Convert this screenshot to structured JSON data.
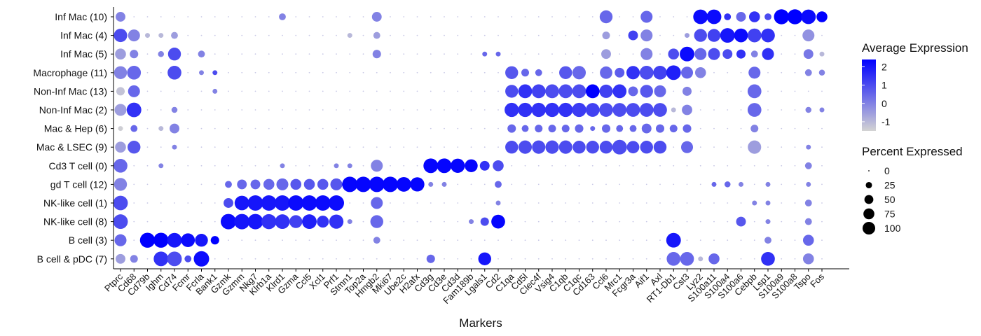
{
  "chart_data": {
    "type": "dotplot",
    "xlabel": "Markers",
    "ylabel": "",
    "genes": [
      "Ptprc",
      "Cd68",
      "Cd79b",
      "Ighm",
      "Cd74",
      "Fcmr",
      "Fcrla",
      "Bank1",
      "Gzmk",
      "Gzmm",
      "Nkg7",
      "Klrb1a",
      "Klrd1",
      "Gzma",
      "Ccl5",
      "Xcl1",
      "Prf1",
      "Stmn1",
      "Top2a",
      "Hmgb2",
      "Mki67",
      "Ube2c",
      "H2afx",
      "Cd3g",
      "Cd3e",
      "Cd3d",
      "Fam189b",
      "Lgals1",
      "Cd2",
      "C1qa",
      "Cd5l",
      "Clec4f",
      "Vsig4",
      "C1qb",
      "C1qc",
      "Cd163",
      "Ccl6",
      "Mrc1",
      "Fcgr3a",
      "Aif1",
      "Axl",
      "RT1-Db1",
      "Cst3",
      "Lyz2",
      "S100a11",
      "S100a4",
      "S100a6",
      "Cebpb",
      "Lsp1",
      "S100a9",
      "S100a8",
      "Tspo",
      "Fos"
    ],
    "clusters": [
      "Inf Mac (10)",
      "Inf Mac (4)",
      "Inf Mac (5)",
      "Macrophage (11)",
      "Non-Inf Mac (13)",
      "Non-Inf Mac (2)",
      "Mac & Hep (6)",
      "Mac & LSEC (9)",
      "Cd3 T cell (0)",
      "gd T cell (12)",
      "NK-like cell (1)",
      "NK-like cell (8)",
      "B cell (3)",
      "B cell & pDC (7)"
    ],
    "avg_expression": [
      [
        0,
        -1,
        -1,
        -1,
        -1,
        -1,
        -1,
        -1,
        -1,
        -1,
        -1,
        -1,
        0,
        -1,
        -1,
        -1,
        -1,
        -1,
        -1,
        0,
        -1,
        -1,
        -1,
        -1,
        -1,
        -1,
        -1,
        -1,
        -1,
        -1,
        -1,
        -1,
        -1,
        -1,
        -1,
        -1,
        0.5,
        -1,
        -1,
        0.5,
        -1,
        -1,
        -1,
        2.2,
        2.2,
        1.5,
        0.5,
        1.5,
        1,
        2.4,
        2.4,
        2.2,
        2.4
      ],
      [
        1,
        0,
        -1,
        -1,
        -0.5,
        -1,
        -1,
        -1,
        -1,
        -1,
        -1,
        -1,
        -1,
        -1,
        -1,
        -1,
        -1,
        -1,
        -1,
        -0.5,
        -1,
        -1,
        -1,
        -1,
        -1,
        -1,
        -1,
        -1,
        -1,
        -1,
        -1,
        -1,
        -1,
        -1,
        -1,
        -1,
        -0.5,
        -1,
        1.2,
        0,
        -1,
        -1,
        -0.5,
        1,
        1.2,
        2,
        2.2,
        1.2,
        1.5,
        -1,
        -1,
        -0.3,
        -1
      ],
      [
        -0.5,
        0,
        -1,
        0,
        1,
        -1,
        0,
        -1,
        -1,
        -1,
        -1,
        -1,
        -1,
        -1,
        -1,
        -1,
        -1,
        -1,
        -1,
        0,
        -1,
        -1,
        -1,
        -1,
        -1,
        -1,
        -1,
        0.5,
        0.5,
        -1,
        -1,
        -1,
        -1,
        -1,
        -1,
        -1,
        -0.5,
        -1,
        -1,
        0,
        -1,
        1,
        2.2,
        0.5,
        1,
        1,
        1.5,
        0,
        1.5,
        -1,
        -1,
        0.2,
        -1
      ],
      [
        0,
        0.5,
        -1,
        -1,
        1,
        -1,
        0,
        1,
        -1,
        -1,
        -1,
        -1,
        -1,
        -1,
        -1,
        -1,
        -1,
        -1,
        -1,
        -1,
        -1,
        -1,
        -1,
        -1,
        -1,
        -1,
        -1,
        -1,
        -1,
        0.8,
        0.5,
        0.5,
        -1,
        0.8,
        0.5,
        -1,
        0.5,
        0.7,
        1.5,
        1,
        1.2,
        1.8,
        0.5,
        0,
        -1,
        -1,
        -1,
        0.5,
        -1,
        -1,
        -1,
        0,
        0
      ],
      [
        -1.2,
        0.5,
        -1,
        -1,
        -1,
        -1,
        -1,
        0,
        -1,
        -1,
        -1,
        -1,
        -1,
        -1,
        -1,
        -1,
        -1,
        -1,
        -1,
        -1,
        -1,
        -1,
        -1,
        -1,
        -1,
        -1,
        -1,
        -1,
        -1,
        1,
        1.5,
        1.2,
        1,
        1,
        1,
        2.4,
        1.2,
        1.5,
        0.5,
        0.8,
        0.5,
        -1,
        0,
        -1,
        -1,
        -1,
        -1,
        0.5,
        -1,
        -1,
        -1,
        -1,
        -1
      ],
      [
        -0.5,
        1.5,
        -1,
        -1,
        0,
        -1,
        -1,
        -1,
        -1,
        -1,
        -1,
        -1,
        -1,
        -1,
        -1,
        -1,
        -1,
        -1,
        -1,
        -1,
        -1,
        -1,
        -1,
        -1,
        -1,
        -1,
        -1,
        -1,
        -1,
        1.5,
        1.5,
        1.5,
        1.5,
        1.5,
        1.3,
        1.2,
        1,
        1,
        1,
        1,
        1,
        -1,
        0,
        -1,
        -1,
        -1,
        -1,
        0.5,
        -1,
        -1,
        -1,
        0,
        0
      ],
      [
        -1.4,
        0.5,
        -1,
        -1,
        0,
        -1,
        -1,
        -1,
        -1,
        -1,
        -1,
        -1,
        -1,
        -1,
        -1,
        -1,
        -1,
        -1,
        -1,
        -1,
        -1,
        -1,
        -1,
        -1,
        -1,
        -1,
        -1,
        -1,
        -1,
        0.5,
        0.5,
        0.5,
        0.5,
        0.5,
        0.5,
        0.5,
        0.5,
        0.5,
        0.5,
        0.5,
        0.5,
        0.5,
        0.5,
        -1,
        -1,
        -1,
        -1,
        0,
        -1,
        -1,
        -1,
        -1,
        -1
      ],
      [
        -0.5,
        0.8,
        -1,
        -1,
        0,
        -1,
        -1,
        -1,
        -1,
        -1,
        -1,
        -1,
        -1,
        -1,
        -1,
        -1,
        -1,
        -1,
        -1,
        -1,
        -1,
        -1,
        -1,
        -1,
        -1,
        -1,
        -1,
        -1,
        -1,
        1,
        1,
        1,
        1,
        1,
        1,
        1,
        1,
        1,
        1,
        1,
        1,
        -1,
        0.5,
        -1,
        -1,
        -1,
        -1,
        -0.5,
        -1,
        -1,
        -1,
        0,
        -1
      ],
      [
        0.5,
        -1,
        -1,
        0,
        -1,
        -1,
        -1,
        -1,
        -1,
        -1,
        -1,
        -1,
        0,
        -1,
        -1,
        -1,
        0,
        0,
        -1,
        0,
        -1,
        -1,
        -1,
        2.3,
        2.3,
        2.3,
        2.3,
        1.5,
        1,
        -1,
        -1,
        -1,
        -1,
        -1,
        -1,
        -1,
        -1,
        -1,
        -1,
        -1,
        -1,
        -1,
        -1,
        -1,
        -1,
        -1,
        -1,
        -1,
        -1,
        -1,
        -1,
        0,
        -1
      ],
      [
        0,
        -1,
        -1,
        -1,
        -1,
        -1,
        -1,
        -1,
        0.5,
        0.5,
        0.5,
        0.5,
        0.5,
        0.8,
        0.8,
        0.8,
        0.8,
        2.3,
        2.3,
        2.3,
        2.3,
        2.3,
        2.3,
        0,
        0,
        -1,
        -1,
        -1,
        0.5,
        -1,
        -1,
        -1,
        -1,
        -1,
        -1,
        -1,
        -1,
        -1,
        -1,
        -1,
        -1,
        -1,
        -1,
        -1,
        0.5,
        0.5,
        0,
        -1,
        0,
        -1,
        -1,
        0,
        -1
      ],
      [
        1,
        -1,
        -1,
        -1,
        -1,
        -1,
        -1,
        -1,
        1,
        2,
        2,
        2,
        2,
        2.2,
        2.2,
        2.2,
        2.2,
        -1,
        -1,
        0.5,
        -1,
        -1,
        -1,
        -1,
        -1,
        -1,
        -1,
        -1,
        0,
        -1,
        -1,
        -1,
        -1,
        -1,
        -1,
        -1,
        -1,
        -1,
        -1,
        -1,
        -1,
        -1,
        -1,
        -1,
        -1,
        -1,
        -1,
        0,
        0,
        -1,
        -1,
        0,
        -1
      ],
      [
        1,
        -1,
        -1,
        -1,
        -1,
        -1,
        -1,
        -1,
        2.2,
        2,
        2,
        1.5,
        1.5,
        1.2,
        1.8,
        1.5,
        1.5,
        0,
        -1,
        0.5,
        -1,
        -1,
        -1,
        -1,
        -1,
        -1,
        0,
        1,
        2.3,
        -1,
        -1,
        -1,
        -1,
        -1,
        -1,
        -1,
        -1,
        -1,
        -1,
        -1,
        -1,
        -1,
        -1,
        -1,
        -1,
        -1,
        0.8,
        -1,
        0,
        -1,
        -1,
        0,
        -1
      ],
      [
        0.5,
        -1,
        2.4,
        2.4,
        2,
        2.2,
        2,
        2.4,
        -1,
        -1,
        -1,
        -1,
        -1,
        -1,
        -1,
        -1,
        -1,
        -1,
        -1,
        0,
        -1,
        -1,
        -1,
        -1,
        -1,
        -1,
        -1,
        -1,
        -1,
        -1,
        -1,
        -1,
        -1,
        -1,
        -1,
        -1,
        -1,
        -1,
        -1,
        -1,
        -1,
        2,
        -1,
        -1,
        -1,
        -1,
        -1,
        -1,
        0,
        -1,
        -1,
        0.5,
        -1
      ],
      [
        -0.5,
        0,
        -1,
        1.5,
        1,
        1,
        2.2,
        -1,
        -1,
        -1,
        -1,
        -1,
        -1,
        -1,
        -1,
        -1,
        -1,
        -1,
        -1,
        -1,
        -1,
        -1,
        -1,
        0.5,
        -1,
        -1,
        -1,
        2,
        -1,
        -1,
        -1,
        -1,
        -1,
        -1,
        -1,
        -1,
        -1,
        -1,
        -1,
        -1,
        -1,
        0.5,
        0.5,
        -1,
        0.5,
        -1,
        -1,
        -1,
        1.5,
        -1,
        -1,
        0,
        -1
      ]
    ],
    "pct_expressed": [
      [
        40,
        5,
        5,
        5,
        5,
        5,
        5,
        5,
        5,
        5,
        5,
        5,
        20,
        5,
        5,
        5,
        5,
        5,
        5,
        40,
        5,
        5,
        5,
        5,
        5,
        5,
        5,
        5,
        5,
        5,
        5,
        5,
        5,
        5,
        5,
        5,
        70,
        5,
        5,
        60,
        5,
        5,
        5,
        90,
        90,
        20,
        40,
        50,
        20,
        95,
        95,
        90,
        50
      ],
      [
        75,
        60,
        10,
        10,
        20,
        5,
        5,
        5,
        5,
        5,
        5,
        5,
        5,
        5,
        5,
        5,
        5,
        10,
        5,
        20,
        5,
        5,
        5,
        5,
        5,
        5,
        5,
        5,
        5,
        5,
        5,
        5,
        5,
        5,
        5,
        5,
        25,
        5,
        40,
        60,
        5,
        5,
        10,
        70,
        70,
        90,
        80,
        80,
        80,
        5,
        5,
        60,
        5
      ],
      [
        50,
        30,
        5,
        15,
        70,
        5,
        20,
        5,
        5,
        5,
        5,
        5,
        5,
        5,
        5,
        5,
        5,
        5,
        5,
        30,
        5,
        5,
        5,
        5,
        5,
        5,
        5,
        10,
        10,
        5,
        5,
        5,
        5,
        5,
        5,
        5,
        40,
        5,
        5,
        60,
        5,
        50,
        90,
        60,
        60,
        40,
        35,
        20,
        60,
        5,
        5,
        40,
        10
      ],
      [
        70,
        80,
        5,
        5,
        80,
        5,
        10,
        10,
        5,
        5,
        5,
        5,
        5,
        5,
        5,
        5,
        5,
        5,
        5,
        5,
        5,
        5,
        5,
        5,
        5,
        5,
        5,
        5,
        5,
        70,
        25,
        20,
        5,
        70,
        75,
        5,
        65,
        40,
        75,
        80,
        80,
        90,
        60,
        50,
        5,
        5,
        5,
        60,
        5,
        5,
        5,
        20,
        15
      ],
      [
        30,
        60,
        5,
        5,
        5,
        5,
        5,
        10,
        5,
        5,
        5,
        5,
        5,
        5,
        5,
        5,
        5,
        5,
        5,
        5,
        5,
        5,
        5,
        5,
        5,
        5,
        5,
        5,
        5,
        70,
        80,
        80,
        80,
        80,
        80,
        80,
        75,
        80,
        40,
        70,
        60,
        5,
        35,
        5,
        5,
        5,
        5,
        80,
        5,
        5,
        5,
        5,
        5
      ],
      [
        60,
        90,
        5,
        5,
        15,
        5,
        5,
        5,
        5,
        5,
        5,
        5,
        5,
        5,
        5,
        5,
        5,
        5,
        5,
        5,
        5,
        5,
        5,
        5,
        5,
        5,
        5,
        5,
        5,
        85,
        85,
        85,
        85,
        85,
        85,
        80,
        80,
        80,
        80,
        80,
        80,
        10,
        45,
        5,
        5,
        5,
        5,
        80,
        5,
        5,
        5,
        15,
        10
      ],
      [
        10,
        20,
        5,
        10,
        40,
        5,
        5,
        5,
        5,
        5,
        5,
        5,
        5,
        5,
        5,
        5,
        5,
        5,
        5,
        5,
        5,
        5,
        5,
        5,
        5,
        5,
        5,
        5,
        5,
        30,
        20,
        25,
        25,
        25,
        30,
        10,
        30,
        20,
        20,
        40,
        30,
        25,
        30,
        5,
        5,
        5,
        5,
        25,
        5,
        5,
        5,
        5,
        5
      ],
      [
        50,
        70,
        5,
        5,
        10,
        5,
        5,
        5,
        5,
        5,
        5,
        5,
        5,
        5,
        5,
        5,
        5,
        5,
        5,
        5,
        5,
        5,
        5,
        5,
        5,
        5,
        5,
        5,
        5,
        70,
        75,
        75,
        75,
        75,
        70,
        70,
        70,
        90,
        65,
        70,
        70,
        5,
        60,
        5,
        5,
        5,
        5,
        75,
        5,
        5,
        5,
        10,
        5
      ],
      [
        80,
        5,
        5,
        10,
        5,
        5,
        5,
        5,
        5,
        5,
        5,
        5,
        10,
        5,
        5,
        5,
        10,
        10,
        5,
        60,
        5,
        5,
        5,
        90,
        90,
        85,
        70,
        40,
        50,
        5,
        5,
        5,
        5,
        5,
        5,
        5,
        5,
        5,
        5,
        5,
        5,
        5,
        5,
        5,
        5,
        5,
        5,
        5,
        5,
        5,
        5,
        20,
        5
      ],
      [
        70,
        5,
        5,
        5,
        5,
        5,
        5,
        5,
        20,
        40,
        40,
        50,
        60,
        50,
        50,
        50,
        60,
        100,
        100,
        100,
        100,
        90,
        85,
        10,
        10,
        5,
        5,
        5,
        20,
        5,
        5,
        5,
        5,
        5,
        5,
        5,
        5,
        5,
        5,
        5,
        5,
        5,
        5,
        5,
        10,
        15,
        10,
        5,
        10,
        5,
        5,
        10,
        5
      ],
      [
        90,
        5,
        5,
        5,
        5,
        5,
        5,
        5,
        40,
        90,
        100,
        100,
        100,
        100,
        100,
        100,
        100,
        5,
        5,
        60,
        5,
        5,
        5,
        5,
        5,
        5,
        5,
        5,
        10,
        5,
        5,
        5,
        5,
        5,
        5,
        5,
        5,
        5,
        5,
        5,
        5,
        5,
        5,
        5,
        5,
        5,
        5,
        10,
        10,
        5,
        5,
        20,
        5
      ],
      [
        90,
        5,
        5,
        5,
        5,
        5,
        5,
        5,
        100,
        100,
        100,
        95,
        90,
        70,
        90,
        60,
        85,
        10,
        5,
        70,
        5,
        5,
        5,
        5,
        5,
        5,
        10,
        30,
        80,
        5,
        5,
        5,
        5,
        5,
        5,
        5,
        5,
        5,
        5,
        5,
        5,
        5,
        5,
        5,
        5,
        5,
        40,
        5,
        10,
        5,
        5,
        20,
        5
      ],
      [
        60,
        5,
        95,
        95,
        90,
        80,
        70,
        30,
        5,
        5,
        5,
        5,
        5,
        5,
        5,
        5,
        5,
        5,
        5,
        20,
        5,
        5,
        5,
        5,
        5,
        5,
        5,
        5,
        5,
        5,
        5,
        5,
        5,
        5,
        5,
        5,
        5,
        5,
        5,
        5,
        5,
        90,
        5,
        5,
        5,
        5,
        5,
        5,
        20,
        5,
        5,
        50,
        5
      ],
      [
        40,
        25,
        5,
        90,
        90,
        20,
        100,
        5,
        5,
        5,
        5,
        5,
        5,
        5,
        5,
        5,
        5,
        5,
        5,
        5,
        5,
        5,
        5,
        30,
        5,
        5,
        5,
        70,
        5,
        5,
        5,
        5,
        5,
        5,
        5,
        5,
        5,
        5,
        5,
        5,
        5,
        80,
        80,
        10,
        50,
        5,
        5,
        5,
        80,
        5,
        5,
        50,
        5
      ]
    ],
    "color_scale": {
      "low": "#d3d3d3",
      "high": "#0000ff",
      "range": [
        -1.5,
        2.4
      ]
    },
    "legends": {
      "color_title": "Average Expression",
      "color_ticks": [
        "2",
        "1",
        "0",
        "-1"
      ],
      "size_title": "Percent Expressed",
      "size_ticks": [
        "0",
        "25",
        "50",
        "75",
        "100"
      ]
    }
  }
}
